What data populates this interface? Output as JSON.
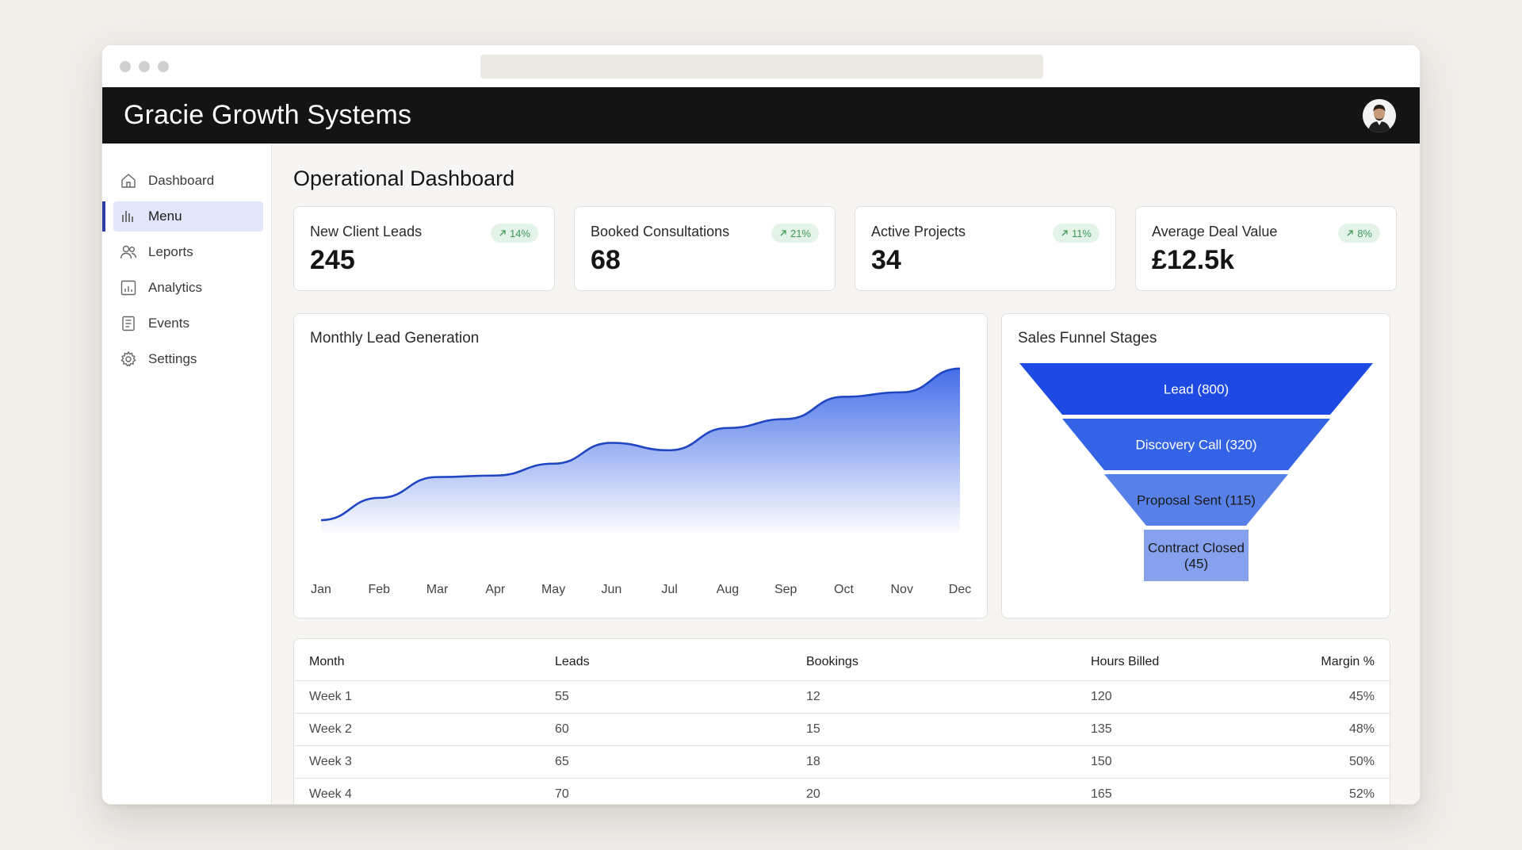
{
  "app": {
    "brand": "Gracie Growth Systems"
  },
  "sidebar": {
    "items": [
      {
        "label": "Dashboard",
        "icon": "home-icon"
      },
      {
        "label": "Menu",
        "icon": "bar-chart-icon",
        "active": true
      },
      {
        "label": "Leports",
        "icon": "users-icon"
      },
      {
        "label": "Analytics",
        "icon": "analytics-icon"
      },
      {
        "label": "Events",
        "icon": "document-icon"
      },
      {
        "label": "Settings",
        "icon": "gear-icon"
      }
    ]
  },
  "page": {
    "title": "Operational Dashboard"
  },
  "kpis": [
    {
      "label": "New Client Leads",
      "value": "245",
      "change": "14%"
    },
    {
      "label": "Booked Consultations",
      "value": "68",
      "change": "21%"
    },
    {
      "label": "Active Projects",
      "value": "34",
      "change": "11%"
    },
    {
      "label": "Average Deal Value",
      "value": "£12.5k",
      "change": "8%"
    }
  ],
  "colors": {
    "accent": "#2b3ea8",
    "chart_line": "#1f45c2",
    "badge_green": "#3f9a5a",
    "funnel": [
      "#1e4ae3",
      "#3563e6",
      "#5880e9",
      "#86a2ee"
    ]
  },
  "chart_data": [
    {
      "type": "area",
      "title": "Monthly Lead Generation",
      "categories": [
        "Jan",
        "Feb",
        "Mar",
        "Apr",
        "May",
        "Jun",
        "Jul",
        "Aug",
        "Sep",
        "Oct",
        "Nov",
        "Dec"
      ],
      "values": [
        8,
        23,
        37,
        38,
        46,
        60,
        55,
        70,
        76,
        91,
        94,
        110
      ],
      "ylim": [
        0,
        120
      ]
    },
    {
      "type": "funnel",
      "title": "Sales Funnel Stages",
      "stages": [
        {
          "label": "Lead (800)",
          "value": 800
        },
        {
          "label": "Discovery Call (320)",
          "value": 320
        },
        {
          "label": "Proposal Sent (115)",
          "value": 115
        },
        {
          "label": "Contract Closed (45)",
          "value": 45
        }
      ]
    }
  ],
  "table": {
    "columns": [
      "Month",
      "Leads",
      "Bookings",
      "Hours Billed",
      "Margin %"
    ],
    "rows": [
      [
        "Week 1",
        "55",
        "12",
        "120",
        "45%"
      ],
      [
        "Week 2",
        "60",
        "15",
        "135",
        "48%"
      ],
      [
        "Week 3",
        "65",
        "18",
        "150",
        "50%"
      ],
      [
        "Week 4",
        "70",
        "20",
        "165",
        "52%"
      ]
    ]
  }
}
